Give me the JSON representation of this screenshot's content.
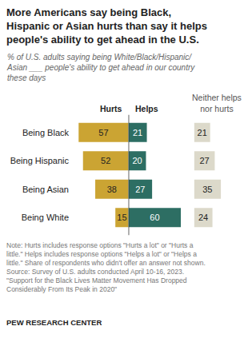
{
  "chart_data": {
    "type": "bar",
    "orientation": "horizontal",
    "title": "More Americans say being Black,\nHispanic or Asian hurts than say it helps\npeople's ability to get ahead in the U.S.",
    "subtitle": "% of U.S. adults saying being White/Black/Hispanic/\nAsian ___ people's ability to get ahead in our country\nthese days",
    "categories": [
      "Being Black",
      "Being Hispanic",
      "Being Asian",
      "Being White"
    ],
    "series": [
      {
        "name": "Hurts",
        "color": "#cba433",
        "values": [
          57,
          52,
          38,
          15
        ]
      },
      {
        "name": "Helps",
        "color": "#2d6e63",
        "values": [
          21,
          20,
          27,
          60
        ]
      },
      {
        "name": "Neither helps nor hurts",
        "color": "#dcd9ca",
        "values": [
          21,
          27,
          35,
          24
        ]
      }
    ],
    "data_labels": true,
    "grid": false,
    "tick_labels": "y",
    "notes": "Note: Hurts includes response options \"Hurts a lot\" or \"Hurts a\nlittle.\" Helps includes response options \"Helps a lot\" or \"Helps a\nlittle.\" Share of respondents who didn't offer an answer not shown.\nSource: Survey of U.S. adults conducted April 10-16, 2023.\n\"Support for the Black Lives Matter Movement Has Dropped\nConsiderably From Its Peak in 2020\"",
    "credit": "PEW RESEARCH CENTER"
  }
}
